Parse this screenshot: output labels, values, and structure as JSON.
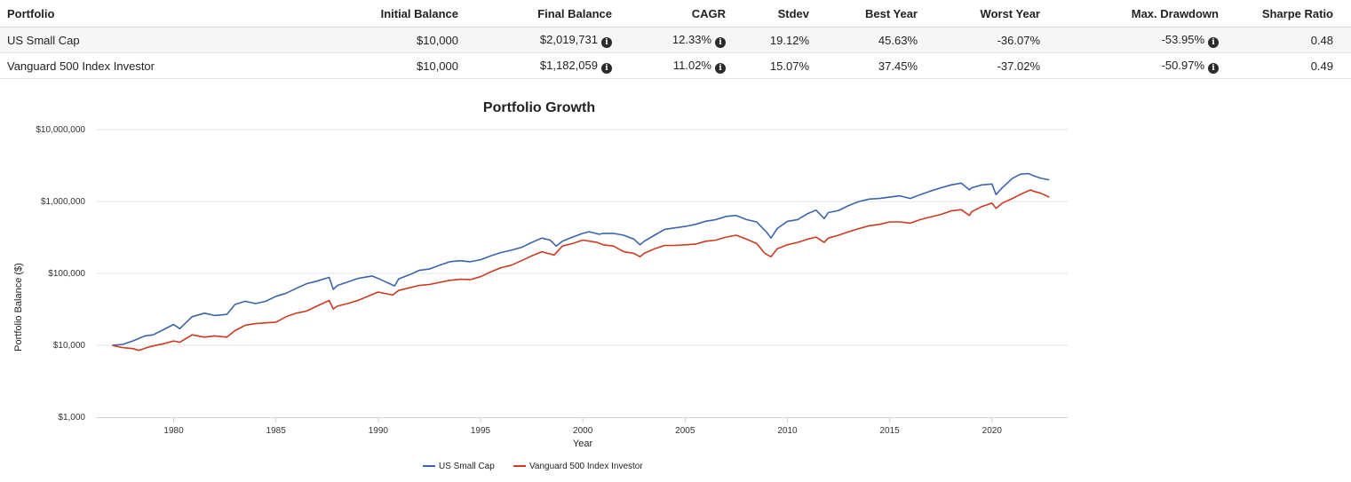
{
  "table": {
    "headers": [
      "Portfolio",
      "Initial Balance",
      "Final Balance",
      "CAGR",
      "Stdev",
      "Best Year",
      "Worst Year",
      "Max. Drawdown",
      "Sharpe Ratio"
    ],
    "info_columns": [
      2,
      3,
      7
    ],
    "rows": [
      [
        "US Small Cap",
        "$10,000",
        "$2,019,731",
        "12.33%",
        "19.12%",
        "45.63%",
        "-36.07%",
        "-53.95%",
        "0.48"
      ],
      [
        "Vanguard 500 Index Investor",
        "$10,000",
        "$1,182,059",
        "11.02%",
        "15.07%",
        "37.45%",
        "-37.02%",
        "-50.97%",
        "0.49"
      ]
    ]
  },
  "chart_data": {
    "type": "line",
    "title": "Portfolio Growth",
    "xlabel": "Year",
    "ylabel": "Portfolio Balance ($)",
    "y_scale": "log",
    "ylim": [
      1000,
      10000000
    ],
    "xlim": [
      1976.2,
      2023.7
    ],
    "y_ticks": [
      1000,
      10000,
      100000,
      1000000,
      10000000
    ],
    "y_tick_labels": [
      "$1,000",
      "$10,000",
      "$100,000",
      "$1,000,000",
      "$10,000,000"
    ],
    "x_ticks": [
      1980,
      1985,
      1990,
      1995,
      2000,
      2005,
      2010,
      2015,
      2020
    ],
    "grid": "horizontal",
    "legend_position": "bottom",
    "series": [
      {
        "name": "US Small Cap",
        "color": "#3a65ad",
        "x": [
          1977.0,
          1977.5,
          1978.0,
          1978.6,
          1979.0,
          1979.5,
          1980.0,
          1980.3,
          1980.9,
          1981.5,
          1982.0,
          1982.6,
          1983.0,
          1983.5,
          1984.0,
          1984.5,
          1985.0,
          1985.5,
          1986.0,
          1986.5,
          1987.0,
          1987.6,
          1987.8,
          1988.0,
          1988.5,
          1989.0,
          1989.7,
          1990.0,
          1990.8,
          1991.0,
          1991.5,
          1992.0,
          1992.5,
          1993.0,
          1993.5,
          1994.0,
          1994.5,
          1995.0,
          1995.5,
          1996.0,
          1996.5,
          1997.0,
          1997.5,
          1998.0,
          1998.4,
          1998.7,
          1999.0,
          1999.5,
          2000.0,
          2000.3,
          2000.8,
          2001.0,
          2001.5,
          2002.0,
          2002.5,
          2002.8,
          2003.0,
          2003.5,
          2004.0,
          2004.5,
          2005.0,
          2005.5,
          2006.0,
          2006.5,
          2007.0,
          2007.5,
          2008.0,
          2008.5,
          2009.0,
          2009.2,
          2009.5,
          2010.0,
          2010.5,
          2011.0,
          2011.4,
          2011.8,
          2012.0,
          2012.5,
          2013.0,
          2013.5,
          2014.0,
          2014.5,
          2015.0,
          2015.5,
          2016.0,
          2016.5,
          2017.0,
          2017.5,
          2018.0,
          2018.5,
          2018.9,
          2019.0,
          2019.5,
          2020.0,
          2020.2,
          2020.5,
          2021.0,
          2021.4,
          2021.8,
          2022.0,
          2022.4,
          2022.8
        ],
        "values": [
          10000,
          10300,
          11500,
          13500,
          14000,
          16500,
          19500,
          17000,
          25000,
          28000,
          26000,
          27000,
          37000,
          41000,
          38000,
          41000,
          48000,
          53000,
          62000,
          72000,
          78000,
          88000,
          60000,
          68000,
          76000,
          85000,
          92000,
          85000,
          67000,
          84000,
          95000,
          110000,
          115000,
          130000,
          145000,
          150000,
          145000,
          155000,
          175000,
          195000,
          210000,
          230000,
          270000,
          310000,
          290000,
          240000,
          280000,
          320000,
          360000,
          380000,
          350000,
          360000,
          360000,
          340000,
          300000,
          250000,
          280000,
          340000,
          410000,
          430000,
          450000,
          480000,
          530000,
          560000,
          620000,
          640000,
          560000,
          520000,
          370000,
          310000,
          420000,
          530000,
          560000,
          680000,
          760000,
          580000,
          700000,
          750000,
          880000,
          1000000,
          1080000,
          1100000,
          1150000,
          1200000,
          1100000,
          1250000,
          1400000,
          1550000,
          1700000,
          1800000,
          1450000,
          1550000,
          1700000,
          1750000,
          1250000,
          1550000,
          2100000,
          2400000,
          2450000,
          2300000,
          2100000,
          2000000
        ]
      },
      {
        "name": "Vanguard 500 Index Investor",
        "color": "#cc3a1f",
        "x": [
          1977.0,
          1977.5,
          1978.0,
          1978.3,
          1978.8,
          1979.0,
          1979.5,
          1980.0,
          1980.3,
          1980.9,
          1981.5,
          1982.0,
          1982.6,
          1983.0,
          1983.5,
          1984.0,
          1984.5,
          1985.0,
          1985.5,
          1986.0,
          1986.5,
          1987.0,
          1987.6,
          1987.8,
          1988.0,
          1988.5,
          1989.0,
          1989.5,
          1990.0,
          1990.7,
          1991.0,
          1991.5,
          1992.0,
          1992.5,
          1993.0,
          1993.5,
          1994.0,
          1994.5,
          1995.0,
          1995.5,
          1996.0,
          1996.5,
          1997.0,
          1997.5,
          1998.0,
          1998.6,
          1999.0,
          1999.5,
          2000.0,
          2000.7,
          2001.0,
          2001.5,
          2002.0,
          2002.5,
          2002.8,
          2003.0,
          2003.5,
          2004.0,
          2004.5,
          2005.0,
          2005.5,
          2006.0,
          2006.5,
          2007.0,
          2007.5,
          2008.0,
          2008.5,
          2008.9,
          2009.2,
          2009.5,
          2010.0,
          2010.5,
          2011.0,
          2011.4,
          2011.8,
          2012.0,
          2012.5,
          2013.0,
          2013.5,
          2014.0,
          2014.5,
          2015.0,
          2015.5,
          2016.0,
          2016.5,
          2017.0,
          2017.5,
          2018.0,
          2018.5,
          2018.9,
          2019.0,
          2019.5,
          2020.0,
          2020.2,
          2020.5,
          2021.0,
          2021.5,
          2021.9,
          2022.0,
          2022.4,
          2022.8
        ],
        "values": [
          10000,
          9300,
          9000,
          8500,
          9500,
          9800,
          10500,
          11500,
          11000,
          14000,
          13000,
          13500,
          13000,
          16000,
          19000,
          20000,
          20500,
          21000,
          25000,
          28000,
          30000,
          35000,
          42000,
          32000,
          35000,
          38000,
          42000,
          48000,
          55000,
          50000,
          58000,
          63000,
          68000,
          70000,
          75000,
          80000,
          83000,
          82000,
          90000,
          105000,
          120000,
          130000,
          150000,
          175000,
          200000,
          180000,
          240000,
          260000,
          290000,
          270000,
          250000,
          240000,
          200000,
          190000,
          170000,
          190000,
          220000,
          245000,
          245000,
          250000,
          255000,
          280000,
          290000,
          320000,
          340000,
          300000,
          260000,
          190000,
          170000,
          220000,
          250000,
          270000,
          300000,
          320000,
          270000,
          310000,
          340000,
          380000,
          420000,
          460000,
          480000,
          520000,
          520000,
          500000,
          560000,
          610000,
          660000,
          740000,
          770000,
          640000,
          720000,
          850000,
          950000,
          800000,
          950000,
          1100000,
          1300000,
          1450000,
          1400000,
          1300000,
          1150000
        ]
      }
    ]
  }
}
